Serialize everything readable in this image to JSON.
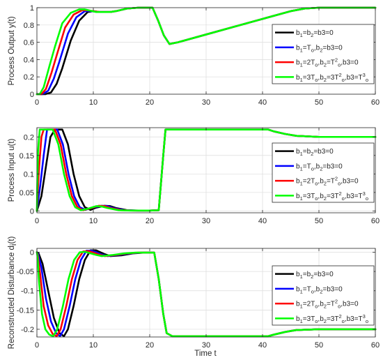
{
  "figure": {
    "xlabel": "Time t",
    "colors": {
      "series1": "#000000",
      "series2": "#0000ff",
      "series3": "#ff0000",
      "series4": "#00ff00",
      "axis": "#262626",
      "grid": "#dcdcdc",
      "background": "#ffffff"
    }
  },
  "chart_data": [
    {
      "type": "line",
      "ylabel": "Process Output y(t)",
      "xlabel": "",
      "xlim": [
        0,
        60
      ],
      "ylim": [
        0,
        1
      ],
      "xticks": [
        "0",
        "10",
        "20",
        "30",
        "40",
        "50",
        "60"
      ],
      "yticks": [
        "0",
        "0.2",
        "0.4",
        "0.6",
        "0.8",
        "1"
      ],
      "grid": true,
      "legend_position": "right",
      "legend": [
        "b_1=b_2=b3=0",
        "b_1=T_o,b_2=b3=0",
        "b_1=2T_o,b_2=T^2_o,b3=0",
        "b_1=3T_o,b_2=3T^2_o,b3=T^3_o"
      ],
      "series": [
        {
          "x": [
            0,
            1.5,
            2.5,
            3.5,
            4.5,
            6,
            7.5,
            9,
            10,
            11,
            12,
            13,
            14,
            16,
            18,
            20.5,
            21.5,
            22.5,
            23.5,
            25,
            30,
            35,
            40,
            45,
            47.5,
            50,
            55,
            60
          ],
          "y": [
            0,
            0,
            0.02,
            0.12,
            0.3,
            0.62,
            0.85,
            0.95,
            0.96,
            0.95,
            0.95,
            0.95,
            0.96,
            0.99,
            1,
            1,
            0.85,
            0.68,
            0.58,
            0.6,
            0.69,
            0.78,
            0.87,
            0.96,
            0.99,
            1,
            1,
            1
          ]
        },
        {
          "x": [
            0,
            1,
            2,
            3,
            4,
            5.5,
            7,
            8.5,
            9.5,
            11,
            12,
            13,
            14,
            16,
            18,
            20.5,
            21.5,
            22.5,
            23.5,
            25,
            30,
            35,
            40,
            45,
            47.5,
            50,
            55,
            60
          ],
          "y": [
            0,
            0,
            0.04,
            0.18,
            0.38,
            0.7,
            0.89,
            0.96,
            0.96,
            0.95,
            0.95,
            0.95,
            0.96,
            0.99,
            1,
            1,
            0.85,
            0.68,
            0.58,
            0.6,
            0.69,
            0.78,
            0.87,
            0.96,
            0.99,
            1,
            1,
            1
          ]
        },
        {
          "x": [
            0,
            0.8,
            1.6,
            2.6,
            3.6,
            5,
            6.5,
            8,
            9,
            11,
            12,
            13,
            14,
            16,
            18,
            20.5,
            21.5,
            22.5,
            23.5,
            25,
            30,
            35,
            40,
            45,
            47.5,
            50,
            55,
            60
          ],
          "y": [
            0,
            0,
            0.06,
            0.25,
            0.47,
            0.77,
            0.92,
            0.97,
            0.97,
            0.95,
            0.95,
            0.95,
            0.96,
            0.99,
            1,
            1,
            0.85,
            0.68,
            0.58,
            0.6,
            0.69,
            0.78,
            0.87,
            0.96,
            0.99,
            1,
            1,
            1
          ]
        },
        {
          "x": [
            0,
            0.5,
            1.2,
            2.2,
            3.2,
            4.5,
            6,
            7.5,
            8.5,
            10.5,
            12,
            13,
            14,
            16,
            18,
            20.5,
            21.5,
            22.5,
            23.5,
            25,
            30,
            35,
            40,
            45,
            47.5,
            50,
            55,
            60
          ],
          "y": [
            0,
            0,
            0.08,
            0.32,
            0.55,
            0.82,
            0.94,
            0.98,
            0.98,
            0.95,
            0.95,
            0.95,
            0.96,
            0.99,
            1,
            1,
            0.85,
            0.68,
            0.58,
            0.6,
            0.69,
            0.78,
            0.87,
            0.96,
            0.99,
            1,
            1,
            1
          ]
        }
      ]
    },
    {
      "type": "line",
      "ylabel": "Process Input u(t)",
      "xlabel": "",
      "xlim": [
        0,
        60
      ],
      "ylim": [
        -0.005,
        0.225
      ],
      "xticks": [
        "0",
        "10",
        "20",
        "30",
        "40",
        "50",
        "60"
      ],
      "yticks": [
        "0",
        "0.05",
        "0.1",
        "0.15",
        "0.2"
      ],
      "grid": true,
      "legend_position": "right",
      "legend": [
        "b_1=b_2=b3=0",
        "b_1=T_o,b_2=b3=0",
        "b_1=2T_o,b_2=T^2_o,b3=0",
        "b_1=3T_o,b_2=3T^2_o,b3=T^3_o"
      ],
      "series": [
        {
          "x": [
            0,
            0.2,
            0.8,
            1.6,
            2.4,
            3.2,
            4.5,
            5.5,
            6.5,
            7.5,
            8.5,
            9.5,
            10.5,
            12,
            13,
            14,
            16,
            18,
            20,
            21.6,
            22.4,
            22.8,
            30,
            40,
            41,
            42,
            44,
            46,
            50,
            55,
            60
          ],
          "y": [
            0,
            0.01,
            0.04,
            0.12,
            0.2,
            0.22,
            0.22,
            0.18,
            0.1,
            0.04,
            0.01,
            0.003,
            0.009,
            0.014,
            0.013,
            0.008,
            0.002,
            0.001,
            0.001,
            0.002,
            0.15,
            0.22,
            0.22,
            0.22,
            0.22,
            0.215,
            0.208,
            0.203,
            0.2,
            0.2,
            0.2
          ]
        },
        {
          "x": [
            0,
            0.15,
            0.6,
            1.2,
            1.8,
            2.6,
            3.6,
            4.6,
            5.6,
            6.6,
            7.6,
            8.6,
            9.6,
            11.5,
            12.5,
            13.5,
            15.5,
            17.5,
            20,
            21.6,
            22.4,
            22.8,
            30,
            40,
            41,
            42,
            44,
            46,
            50,
            55,
            60
          ],
          "y": [
            0,
            0.02,
            0.07,
            0.15,
            0.22,
            0.22,
            0.22,
            0.18,
            0.1,
            0.04,
            0.01,
            0.003,
            0.008,
            0.014,
            0.013,
            0.008,
            0.002,
            0.001,
            0.001,
            0.002,
            0.15,
            0.22,
            0.22,
            0.22,
            0.22,
            0.215,
            0.208,
            0.203,
            0.2,
            0.2,
            0.2
          ]
        },
        {
          "x": [
            0,
            0.1,
            0.4,
            0.8,
            1.2,
            2.4,
            3.2,
            4.2,
            5.2,
            6.2,
            7.2,
            8.2,
            9.2,
            11,
            12,
            13,
            15,
            17,
            20,
            21.6,
            22.4,
            22.8,
            30,
            40,
            41,
            42,
            44,
            46,
            50,
            55,
            60
          ],
          "y": [
            0,
            0.04,
            0.12,
            0.2,
            0.22,
            0.22,
            0.22,
            0.18,
            0.1,
            0.04,
            0.01,
            0.002,
            0.006,
            0.014,
            0.013,
            0.008,
            0.002,
            0.001,
            0.001,
            0.002,
            0.15,
            0.22,
            0.22,
            0.22,
            0.22,
            0.215,
            0.208,
            0.203,
            0.2,
            0.2,
            0.2
          ]
        },
        {
          "x": [
            0,
            0.05,
            0.2,
            0.5,
            0.8,
            2,
            2.8,
            3.8,
            4.8,
            5.8,
            6.8,
            7.8,
            8.8,
            10.5,
            11.5,
            12.5,
            14.5,
            16.5,
            20,
            21.6,
            22.4,
            22.8,
            30,
            40,
            41,
            42,
            44,
            46,
            50,
            55,
            60
          ],
          "y": [
            0,
            0.06,
            0.16,
            0.22,
            0.22,
            0.22,
            0.22,
            0.18,
            0.1,
            0.04,
            0.01,
            0.002,
            0.005,
            0.013,
            0.012,
            0.008,
            0.002,
            0.001,
            0.001,
            0.002,
            0.15,
            0.22,
            0.22,
            0.22,
            0.22,
            0.215,
            0.208,
            0.203,
            0.2,
            0.2,
            0.2
          ]
        }
      ]
    },
    {
      "type": "line",
      "ylabel": "Reconstructed Disturbance d_i(t)",
      "xlabel": "Time t",
      "xlim": [
        0,
        60
      ],
      "ylim": [
        -0.22,
        0.01
      ],
      "xticks": [
        "0",
        "10",
        "20",
        "30",
        "40",
        "50",
        "60"
      ],
      "yticks": [
        "0",
        "-0.05",
        "-0.1",
        "-0.15",
        "-0.2"
      ],
      "grid": true,
      "legend_position": "right",
      "legend": [
        "b_1=b_2=b3=0",
        "b_1=T_o,b_2=b3=0",
        "b_1=2T_o,b_2=T^2_o,b3=0",
        "b_1=3T_o,b_2=3T^2_o,b3=T^3_o"
      ],
      "series": [
        {
          "x": [
            0,
            0.3,
            1,
            2,
            3,
            4,
            4.8,
            5.5,
            6.5,
            7.5,
            8.5,
            9.5,
            10.5,
            12,
            13,
            15,
            17,
            19,
            20.8,
            21.6,
            22.4,
            23,
            24,
            30,
            40,
            41,
            42,
            44,
            46,
            50,
            55,
            60
          ],
          "y": [
            0,
            -0.003,
            -0.03,
            -0.1,
            -0.17,
            -0.21,
            -0.218,
            -0.2,
            -0.14,
            -0.07,
            -0.02,
            0.005,
            0.005,
            -0.005,
            -0.01,
            -0.008,
            -0.003,
            -0.001,
            -0.001,
            -0.07,
            -0.16,
            -0.21,
            -0.218,
            -0.218,
            -0.218,
            -0.218,
            -0.214,
            -0.207,
            -0.202,
            -0.2,
            -0.2,
            -0.2
          ]
        },
        {
          "x": [
            0,
            0.2,
            0.8,
            1.6,
            2.5,
            3.4,
            4.1,
            4.8,
            5.8,
            6.8,
            7.8,
            8.8,
            9.8,
            11.5,
            12.5,
            14.5,
            16.5,
            18.5,
            20.8,
            21.6,
            22.4,
            23,
            24,
            30,
            40,
            41,
            42,
            44,
            46,
            50,
            55,
            60
          ],
          "y": [
            0,
            -0.005,
            -0.04,
            -0.12,
            -0.18,
            -0.21,
            -0.218,
            -0.2,
            -0.14,
            -0.07,
            -0.02,
            0.004,
            0.004,
            -0.006,
            -0.01,
            -0.007,
            -0.003,
            -0.001,
            -0.001,
            -0.07,
            -0.16,
            -0.21,
            -0.218,
            -0.218,
            -0.218,
            -0.218,
            -0.214,
            -0.207,
            -0.202,
            -0.2,
            -0.2,
            -0.2
          ]
        },
        {
          "x": [
            0,
            0.15,
            0.6,
            1.2,
            2,
            2.8,
            3.5,
            4.2,
            5.2,
            6.2,
            7.2,
            8.2,
            9.2,
            11,
            12,
            14,
            16,
            18,
            20.8,
            21.6,
            22.4,
            23,
            24,
            30,
            40,
            41,
            42,
            44,
            46,
            50,
            55,
            60
          ],
          "y": [
            0,
            -0.008,
            -0.06,
            -0.14,
            -0.19,
            -0.212,
            -0.218,
            -0.2,
            -0.14,
            -0.07,
            -0.02,
            0.002,
            0.003,
            -0.006,
            -0.01,
            -0.007,
            -0.003,
            -0.001,
            -0.001,
            -0.07,
            -0.16,
            -0.21,
            -0.218,
            -0.218,
            -0.218,
            -0.218,
            -0.214,
            -0.207,
            -0.202,
            -0.2,
            -0.2,
            -0.2
          ]
        },
        {
          "x": [
            0,
            0.1,
            0.4,
            0.9,
            1.5,
            2.2,
            2.9,
            3.6,
            4.6,
            5.6,
            6.6,
            7.6,
            8.6,
            10.5,
            11.5,
            13.5,
            15.5,
            17.5,
            20.8,
            21.6,
            22.4,
            23,
            24,
            30,
            40,
            41,
            42,
            44,
            46,
            50,
            55,
            60
          ],
          "y": [
            0,
            -0.01,
            -0.08,
            -0.16,
            -0.2,
            -0.214,
            -0.218,
            -0.2,
            -0.14,
            -0.07,
            -0.02,
            0,
            0.001,
            -0.007,
            -0.01,
            -0.007,
            -0.003,
            -0.001,
            -0.001,
            -0.07,
            -0.16,
            -0.21,
            -0.218,
            -0.218,
            -0.218,
            -0.218,
            -0.214,
            -0.207,
            -0.202,
            -0.2,
            -0.2,
            -0.2
          ]
        }
      ]
    }
  ]
}
